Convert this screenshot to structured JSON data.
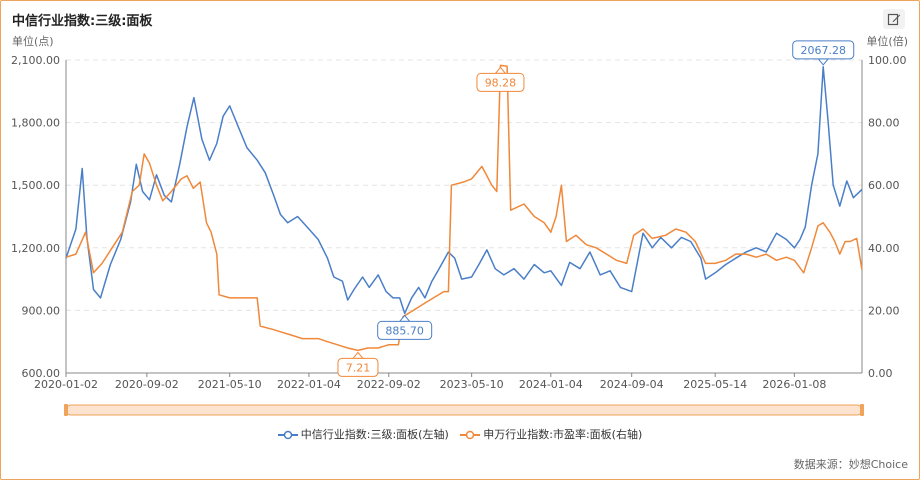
{
  "header": {
    "title": "中信行业指数:三级:面板",
    "edit_icon": "edit-icon"
  },
  "source": "数据来源：妙想Choice",
  "colors": {
    "blue": "#4a7fc8",
    "orange": "#f0883a",
    "grid": "#e4e4e4",
    "axis": "#888888",
    "slider_fill": "#fbe3cf",
    "slider_border": "#f0a35a"
  },
  "chart_data": {
    "type": "line",
    "title": "中信行业指数:三级:面板",
    "x_ticks": [
      "2020-01-02",
      "2020-09-02",
      "2021-05-10",
      "2022-01-04",
      "2022-09-02",
      "2023-05-10",
      "2024-01-04",
      "2024-09-04",
      "2025-05-14",
      "2026-01-08"
    ],
    "x_range": [
      "2020-01-02",
      "2026-07-31"
    ],
    "y_left": {
      "label": "单位(点)",
      "range": [
        600,
        2100
      ],
      "ticks": [
        "600.00",
        "900.00",
        "1,200.00",
        "1,500.00",
        "1,800.00",
        "2,100.00"
      ]
    },
    "y_right": {
      "label": "单位(倍)",
      "range": [
        0,
        100
      ],
      "ticks": [
        "0.00",
        "20.00",
        "40.00",
        "60.00",
        "80.00",
        "100.00"
      ]
    },
    "grid": true,
    "legend_position": "bottom",
    "series": [
      {
        "name": "中信行业指数:三级:面板(左轴)",
        "axis": "left",
        "points": [
          [
            "2020-01-02",
            1150
          ],
          [
            "2020-02-01",
            1290
          ],
          [
            "2020-02-20",
            1580
          ],
          [
            "2020-03-05",
            1250
          ],
          [
            "2020-03-25",
            1000
          ],
          [
            "2020-04-15",
            960
          ],
          [
            "2020-05-15",
            1120
          ],
          [
            "2020-06-15",
            1240
          ],
          [
            "2020-07-15",
            1420
          ],
          [
            "2020-08-01",
            1600
          ],
          [
            "2020-08-20",
            1470
          ],
          [
            "2020-09-10",
            1430
          ],
          [
            "2020-10-01",
            1550
          ],
          [
            "2020-10-25",
            1450
          ],
          [
            "2020-11-15",
            1420
          ],
          [
            "2020-12-10",
            1600
          ],
          [
            "2021-01-01",
            1780
          ],
          [
            "2021-01-22",
            1920
          ],
          [
            "2021-02-15",
            1720
          ],
          [
            "2021-03-10",
            1620
          ],
          [
            "2021-04-01",
            1700
          ],
          [
            "2021-04-20",
            1830
          ],
          [
            "2021-05-10",
            1880
          ],
          [
            "2021-06-05",
            1780
          ],
          [
            "2021-07-01",
            1680
          ],
          [
            "2021-08-01",
            1620
          ],
          [
            "2021-08-25",
            1560
          ],
          [
            "2021-09-20",
            1450
          ],
          [
            "2021-10-10",
            1360
          ],
          [
            "2021-11-01",
            1320
          ],
          [
            "2021-12-01",
            1350
          ],
          [
            "2022-01-04",
            1290
          ],
          [
            "2022-02-01",
            1240
          ],
          [
            "2022-03-01",
            1150
          ],
          [
            "2022-03-20",
            1060
          ],
          [
            "2022-04-15",
            1040
          ],
          [
            "2022-05-01",
            950
          ],
          [
            "2022-05-20",
            1000
          ],
          [
            "2022-06-15",
            1060
          ],
          [
            "2022-07-05",
            1010
          ],
          [
            "2022-08-01",
            1070
          ],
          [
            "2022-08-25",
            990
          ],
          [
            "2022-09-15",
            960
          ],
          [
            "2022-10-05",
            960
          ],
          [
            "2022-10-20",
            885.7
          ],
          [
            "2022-11-10",
            960
          ],
          [
            "2022-12-01",
            1010
          ],
          [
            "2022-12-20",
            960
          ],
          [
            "2023-01-10",
            1040
          ],
          [
            "2023-02-01",
            1100
          ],
          [
            "2023-03-01",
            1180
          ],
          [
            "2023-03-20",
            1150
          ],
          [
            "2023-04-10",
            1050
          ],
          [
            "2023-05-10",
            1060
          ],
          [
            "2023-06-01",
            1120
          ],
          [
            "2023-06-25",
            1190
          ],
          [
            "2023-07-20",
            1100
          ],
          [
            "2023-08-15",
            1070
          ],
          [
            "2023-09-15",
            1100
          ],
          [
            "2023-10-15",
            1050
          ],
          [
            "2023-11-15",
            1120
          ],
          [
            "2023-12-15",
            1080
          ],
          [
            "2024-01-04",
            1090
          ],
          [
            "2024-02-05",
            1020
          ],
          [
            "2024-03-01",
            1130
          ],
          [
            "2024-04-01",
            1100
          ],
          [
            "2024-05-01",
            1180
          ],
          [
            "2024-06-01",
            1070
          ],
          [
            "2024-07-01",
            1090
          ],
          [
            "2024-08-01",
            1010
          ],
          [
            "2024-09-04",
            990
          ],
          [
            "2024-10-08",
            1270
          ],
          [
            "2024-11-05",
            1200
          ],
          [
            "2024-12-01",
            1250
          ],
          [
            "2025-01-02",
            1200
          ],
          [
            "2025-02-01",
            1250
          ],
          [
            "2025-03-01",
            1230
          ],
          [
            "2025-04-01",
            1150
          ],
          [
            "2025-04-15",
            1050
          ],
          [
            "2025-05-14",
            1080
          ],
          [
            "2025-06-15",
            1120
          ],
          [
            "2025-07-15",
            1150
          ],
          [
            "2025-08-15",
            1180
          ],
          [
            "2025-09-15",
            1200
          ],
          [
            "2025-10-15",
            1180
          ],
          [
            "2025-11-15",
            1270
          ],
          [
            "2025-12-15",
            1240
          ],
          [
            "2026-01-08",
            1200
          ],
          [
            "2026-01-25",
            1240
          ],
          [
            "2026-02-10",
            1300
          ],
          [
            "2026-03-01",
            1500
          ],
          [
            "2026-03-20",
            1650
          ],
          [
            "2026-04-05",
            2067.28
          ],
          [
            "2026-04-20",
            1800
          ],
          [
            "2026-05-05",
            1500
          ],
          [
            "2026-05-25",
            1400
          ],
          [
            "2026-06-15",
            1520
          ],
          [
            "2026-07-05",
            1440
          ],
          [
            "2026-07-31",
            1480
          ]
        ]
      },
      {
        "name": "申万行业指数:市盈率:面板(右轴)",
        "axis": "right",
        "points": [
          [
            "2020-01-02",
            37
          ],
          [
            "2020-02-01",
            38
          ],
          [
            "2020-03-01",
            45
          ],
          [
            "2020-03-25",
            32
          ],
          [
            "2020-04-20",
            35
          ],
          [
            "2020-05-20",
            40
          ],
          [
            "2020-06-20",
            45
          ],
          [
            "2020-07-20",
            58
          ],
          [
            "2020-08-10",
            60
          ],
          [
            "2020-08-25",
            70
          ],
          [
            "2020-09-10",
            67
          ],
          [
            "2020-10-01",
            60
          ],
          [
            "2020-10-20",
            55
          ],
          [
            "2020-11-15",
            58
          ],
          [
            "2020-12-15",
            62
          ],
          [
            "2021-01-01",
            63
          ],
          [
            "2021-01-20",
            59
          ],
          [
            "2021-02-10",
            61
          ],
          [
            "2021-03-01",
            48
          ],
          [
            "2021-03-15",
            45
          ],
          [
            "2021-04-01",
            38
          ],
          [
            "2021-04-08",
            25
          ],
          [
            "2021-05-10",
            24
          ],
          [
            "2021-06-15",
            24
          ],
          [
            "2021-07-15",
            24
          ],
          [
            "2021-08-01",
            24
          ],
          [
            "2021-08-10",
            15
          ],
          [
            "2021-09-15",
            14
          ],
          [
            "2021-10-15",
            13
          ],
          [
            "2021-11-15",
            12
          ],
          [
            "2021-12-15",
            11
          ],
          [
            "2022-01-04",
            11
          ],
          [
            "2022-02-01",
            11
          ],
          [
            "2022-03-01",
            10
          ],
          [
            "2022-04-01",
            9
          ],
          [
            "2022-05-01",
            8
          ],
          [
            "2022-06-01",
            7.21
          ],
          [
            "2022-07-01",
            8
          ],
          [
            "2022-08-01",
            8
          ],
          [
            "2022-09-01",
            9
          ],
          [
            "2022-10-01",
            9
          ],
          [
            "2022-10-15",
            18
          ],
          [
            "2022-11-15",
            20
          ],
          [
            "2022-12-15",
            22
          ],
          [
            "2023-01-15",
            24
          ],
          [
            "2023-02-15",
            26
          ],
          [
            "2023-03-01",
            26
          ],
          [
            "2023-03-10",
            60
          ],
          [
            "2023-04-15",
            61
          ],
          [
            "2023-05-10",
            62
          ],
          [
            "2023-06-10",
            66
          ],
          [
            "2023-07-10",
            60
          ],
          [
            "2023-07-25",
            58
          ],
          [
            "2023-08-05",
            98.28
          ],
          [
            "2023-08-25",
            98
          ],
          [
            "2023-09-05",
            52
          ],
          [
            "2023-10-15",
            54
          ],
          [
            "2023-11-15",
            50
          ],
          [
            "2023-12-15",
            48
          ],
          [
            "2024-01-04",
            45
          ],
          [
            "2024-01-20",
            50
          ],
          [
            "2024-02-05",
            60
          ],
          [
            "2024-02-20",
            42
          ],
          [
            "2024-03-20",
            44
          ],
          [
            "2024-04-20",
            41
          ],
          [
            "2024-05-20",
            40
          ],
          [
            "2024-06-20",
            38
          ],
          [
            "2024-07-20",
            36
          ],
          [
            "2024-08-20",
            35
          ],
          [
            "2024-09-10",
            44
          ],
          [
            "2024-10-08",
            46
          ],
          [
            "2024-11-05",
            43
          ],
          [
            "2024-12-15",
            44
          ],
          [
            "2025-01-15",
            46
          ],
          [
            "2025-02-15",
            45
          ],
          [
            "2025-03-15",
            42
          ],
          [
            "2025-04-15",
            35
          ],
          [
            "2025-05-14",
            35
          ],
          [
            "2025-06-15",
            36
          ],
          [
            "2025-07-15",
            38
          ],
          [
            "2025-08-15",
            38
          ],
          [
            "2025-09-15",
            37
          ],
          [
            "2025-10-15",
            38
          ],
          [
            "2025-11-15",
            36
          ],
          [
            "2025-12-15",
            37
          ],
          [
            "2026-01-08",
            36
          ],
          [
            "2026-02-05",
            32
          ],
          [
            "2026-03-01",
            40
          ],
          [
            "2026-03-20",
            47
          ],
          [
            "2026-04-05",
            48
          ],
          [
            "2026-04-25",
            45
          ],
          [
            "2026-05-10",
            42
          ],
          [
            "2026-05-25",
            38
          ],
          [
            "2026-06-10",
            42
          ],
          [
            "2026-06-25",
            42
          ],
          [
            "2026-07-15",
            43
          ],
          [
            "2026-07-31",
            33
          ]
        ]
      }
    ],
    "annotations": [
      {
        "text": "2067.28",
        "series": 0,
        "x": "2026-04-05",
        "y": 2067.28,
        "placement": "above"
      },
      {
        "text": "885.70",
        "series": 0,
        "x": "2022-10-20",
        "y": 885.7,
        "placement": "below"
      },
      {
        "text": "98.28",
        "series": 1,
        "x": "2023-08-05",
        "y": 98.28,
        "placement": "below"
      },
      {
        "text": "7.21",
        "series": 1,
        "x": "2022-06-01",
        "y": 7.21,
        "placement": "below"
      }
    ]
  }
}
